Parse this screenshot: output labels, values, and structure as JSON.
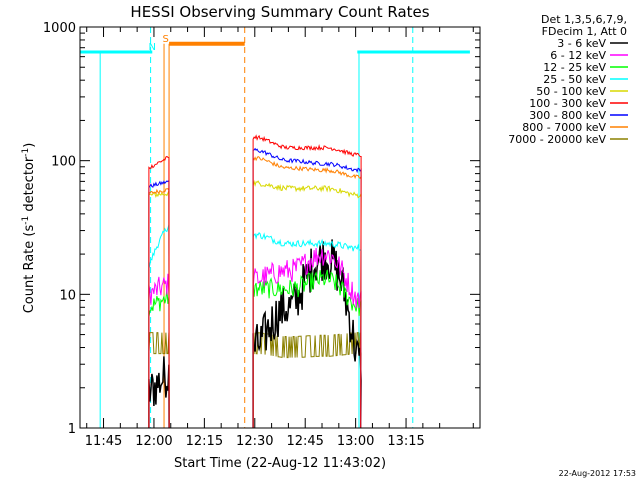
{
  "chart_data": {
    "type": "line",
    "title": "HESSI Observing Summary Count Rates",
    "xlabel": "Start Time (22-Aug-12 11:43:02)",
    "ylabel_main": "Count Rate (s",
    "ylabel_sup1": "-1",
    "ylabel_mid": " detector",
    "ylabel_sup2": "-1",
    "ylabel_end": ")",
    "yscale": "log",
    "ylim": [
      1,
      1000
    ],
    "xlim_minutes": [
      -7,
      112
    ],
    "x_ticks": [
      {
        "m": 0,
        "label": "11:45"
      },
      {
        "m": 15,
        "label": "12:00"
      },
      {
        "m": 30,
        "label": "12:15"
      },
      {
        "m": 45,
        "label": "12:30"
      },
      {
        "m": 60,
        "label": "12:45"
      },
      {
        "m": 75,
        "label": "13:00"
      },
      {
        "m": 90,
        "label": "13:15"
      }
    ],
    "y_ticks": [
      {
        "v": 1,
        "label": "1"
      },
      {
        "v": 10,
        "label": "10"
      },
      {
        "v": 100,
        "label": "100"
      },
      {
        "v": 1000,
        "label": "1000"
      }
    ],
    "legend_header": [
      "Det 1,3,5,6,7,9,",
      "FDecim 1, Att 0"
    ],
    "series": [
      {
        "name": "3 - 6 keV",
        "color": "#000000"
      },
      {
        "name": "6 - 12 keV",
        "color": "#ff00ff"
      },
      {
        "name": "12 - 25 keV",
        "color": "#00ff00"
      },
      {
        "name": "25 - 50 keV",
        "color": "#00ffff"
      },
      {
        "name": "50 - 100 keV",
        "color": "#d8d800"
      },
      {
        "name": "100 - 300 keV",
        "color": "#ff0000"
      },
      {
        "name": "300 - 800 keV",
        "color": "#0000ff"
      },
      {
        "name": "800 - 7000 keV",
        "color": "#ff8000"
      },
      {
        "name": "7000 - 20000 keV",
        "color": "#8b8000"
      }
    ],
    "flag_labels": [
      {
        "text": "N",
        "m": 14.5,
        "color": "#00ffff"
      },
      {
        "text": "S",
        "m": 18.5,
        "color": "#ff8000"
      }
    ],
    "timestamp": "22-Aug-2012 17:53",
    "intervals": [
      {
        "start": 13.5,
        "end": 19.5,
        "levels": {
          "100 - 300 keV": [
            88,
            106
          ],
          "300 - 800 keV": [
            64,
            70
          ],
          "800 - 7000 keV": [
            57,
            61
          ],
          "50 - 100 keV": [
            55,
            57
          ],
          "25 - 50 keV": [
            16,
            33
          ],
          "6 - 12 keV": [
            10,
            12
          ],
          "12 - 25 keV": [
            8,
            9.5
          ],
          "7000 - 20000 keV": [
            4.5,
            4.5
          ],
          "3 - 6 keV": [
            1.8,
            2.6
          ]
        }
      },
      {
        "start": 44.5,
        "end": 76.5,
        "levels": {
          "100 - 300 keV": [
            150,
            125,
            125,
            110
          ],
          "300 - 800 keV": [
            120,
            100,
            95,
            85
          ],
          "800 - 7000 keV": [
            105,
            88,
            85,
            75
          ],
          "50 - 100 keV": [
            68,
            62,
            62,
            55
          ],
          "25 - 50 keV": [
            28,
            24,
            24,
            22
          ],
          "6 - 12 keV": [
            13,
            15,
            20,
            9
          ],
          "12 - 25 keV": [
            11,
            11,
            13,
            8
          ],
          "3 - 6 keV": [
            4,
            8,
            19,
            3
          ],
          "7000 - 20000 keV": [
            4.5,
            4.2,
            4.3,
            4.5
          ]
        }
      }
    ],
    "saa_levels": {
      "cyan": 650,
      "orange": 750
    },
    "cyan_segments": [
      [
        -7,
        14.5
      ],
      [
        75.5,
        92
      ],
      [
        92,
        109
      ]
    ],
    "orange_segment": [
      19.5,
      42
    ],
    "cyan_dashed_at": [
      14,
      92
    ],
    "cyan_solid_at": [
      -1,
      76
    ],
    "orange_dashed_at": [
      42
    ],
    "orange_solid_at": [
      18,
      19.5
    ]
  }
}
